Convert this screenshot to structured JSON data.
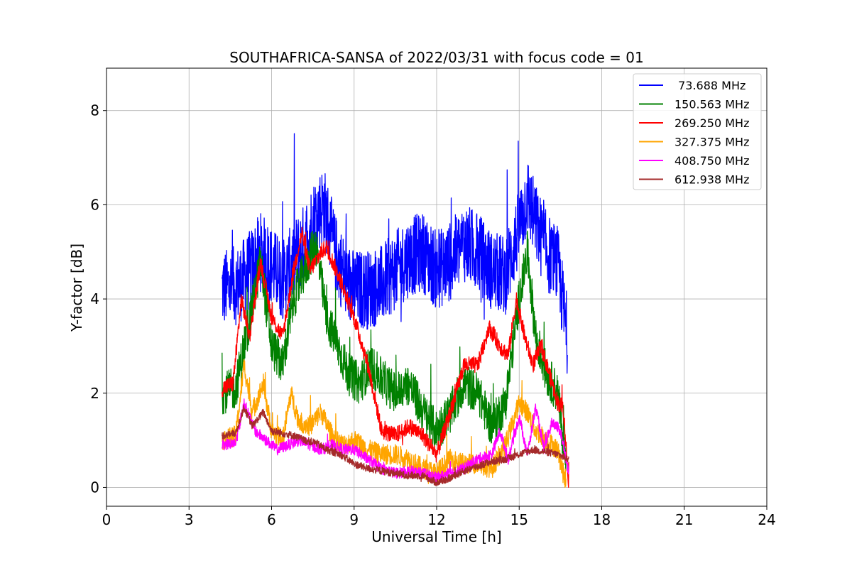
{
  "chart_data": {
    "type": "line",
    "title": "SOUTHAFRICA-SANSA of 2022/03/31 with focus code = 01",
    "xlabel": "Universal Time [h]",
    "ylabel": "Y-factor [dB]",
    "xlim": [
      0,
      24
    ],
    "ylim": [
      -0.4,
      8.9
    ],
    "xticks": [
      0,
      3,
      6,
      9,
      12,
      15,
      18,
      21,
      24
    ],
    "yticks": [
      0,
      2,
      4,
      6,
      8
    ],
    "grid": true,
    "legend_position": "top-right",
    "series": [
      {
        "name": " 73.688 MHz",
        "color": "#0000ff",
        "noise": 0.85,
        "x": [
          4.2,
          4.8,
          5.2,
          5.6,
          6.0,
          6.4,
          6.8,
          7.2,
          7.6,
          7.9,
          8.3,
          8.7,
          9.0,
          9.5,
          10.0,
          10.5,
          11.0,
          11.5,
          12.0,
          12.5,
          13.0,
          13.5,
          14.0,
          14.5,
          15.0,
          15.3,
          15.6,
          16.0,
          16.4,
          16.75
        ],
        "values": [
          4.2,
          4.3,
          4.6,
          5.0,
          4.7,
          4.4,
          4.8,
          5.2,
          5.8,
          6.0,
          5.0,
          4.4,
          4.2,
          4.2,
          4.3,
          4.6,
          4.9,
          5.0,
          4.6,
          4.8,
          5.2,
          5.0,
          4.6,
          4.5,
          5.5,
          6.2,
          5.6,
          5.0,
          4.7,
          3.2
        ]
      },
      {
        "name": "150.563 MHz",
        "color": "#008000",
        "noise": 0.45,
        "x": [
          4.2,
          4.7,
          5.0,
          5.3,
          5.6,
          6.0,
          6.4,
          6.8,
          7.2,
          7.6,
          8.0,
          8.4,
          8.8,
          9.2,
          9.6,
          10.0,
          10.5,
          11.0,
          11.5,
          12.0,
          12.5,
          13.0,
          13.5,
          14.0,
          14.5,
          15.0,
          15.3,
          15.6,
          16.0,
          16.4,
          16.7
        ],
        "values": [
          2.0,
          2.1,
          3.0,
          3.8,
          4.8,
          3.0,
          2.6,
          4.0,
          4.6,
          5.2,
          3.6,
          3.0,
          2.4,
          2.2,
          2.6,
          2.3,
          2.0,
          2.2,
          1.6,
          1.2,
          1.6,
          2.2,
          2.0,
          1.3,
          1.8,
          4.0,
          5.0,
          3.2,
          2.4,
          2.0,
          0.5
        ]
      },
      {
        "name": "269.250 MHz",
        "color": "#ff0000",
        "noise": 0.18,
        "x": [
          4.2,
          4.6,
          4.9,
          5.2,
          5.6,
          6.0,
          6.4,
          6.8,
          7.1,
          7.4,
          7.8,
          8.0,
          8.5,
          9.0,
          9.5,
          10.0,
          10.5,
          11.0,
          11.5,
          12.0,
          12.5,
          13.0,
          13.5,
          13.9,
          14.3,
          14.6,
          14.9,
          15.2,
          15.5,
          15.8,
          16.1,
          16.4,
          16.6,
          16.8
        ],
        "values": [
          2.1,
          2.2,
          4.0,
          3.2,
          4.8,
          3.6,
          3.2,
          4.6,
          5.4,
          4.6,
          5.0,
          5.1,
          4.4,
          3.6,
          2.6,
          1.2,
          1.1,
          1.3,
          1.1,
          0.7,
          1.6,
          2.6,
          2.6,
          3.4,
          3.0,
          2.8,
          4.0,
          3.2,
          2.6,
          3.0,
          2.4,
          1.8,
          1.7,
          0.1
        ]
      },
      {
        "name": "327.375 MHz",
        "color": "#ffa500",
        "noise": 0.22,
        "x": [
          4.2,
          4.7,
          5.0,
          5.3,
          5.7,
          6.0,
          6.4,
          6.7,
          7.0,
          7.4,
          7.8,
          8.2,
          8.6,
          9.0,
          9.5,
          10.0,
          10.5,
          11.0,
          11.5,
          12.0,
          12.5,
          13.0,
          13.5,
          14.0,
          14.5,
          15.0,
          15.3,
          15.6,
          16.0,
          16.4,
          16.7
        ],
        "values": [
          1.0,
          1.1,
          2.6,
          1.6,
          2.2,
          1.2,
          1.0,
          2.0,
          1.4,
          1.3,
          1.6,
          1.1,
          0.9,
          1.0,
          0.8,
          0.7,
          0.7,
          0.6,
          0.4,
          0.3,
          0.6,
          0.5,
          0.5,
          0.4,
          0.9,
          1.8,
          1.6,
          1.2,
          1.0,
          0.8,
          0.05
        ]
      },
      {
        "name": "408.750 MHz",
        "color": "#ff00ff",
        "noise": 0.12,
        "x": [
          4.2,
          4.7,
          5.0,
          5.4,
          5.8,
          6.2,
          6.6,
          7.0,
          7.4,
          7.8,
          8.2,
          8.6,
          9.0,
          9.5,
          10.0,
          10.5,
          11.0,
          11.5,
          12.0,
          12.5,
          13.0,
          13.5,
          14.0,
          14.3,
          14.6,
          15.0,
          15.3,
          15.6,
          15.9,
          16.2,
          16.5,
          16.8
        ],
        "values": [
          0.9,
          0.95,
          1.8,
          1.2,
          1.0,
          0.8,
          0.9,
          1.0,
          0.9,
          0.8,
          0.9,
          0.8,
          0.8,
          0.6,
          0.4,
          0.3,
          0.35,
          0.3,
          0.2,
          0.3,
          0.4,
          0.6,
          0.7,
          1.2,
          0.6,
          1.5,
          0.7,
          1.7,
          0.8,
          1.4,
          1.2,
          0.3
        ]
      },
      {
        "name": "612.938 MHz",
        "color": "#a52a2a",
        "noise": 0.08,
        "x": [
          4.2,
          4.7,
          5.0,
          5.3,
          5.7,
          6.0,
          6.4,
          6.8,
          7.2,
          7.6,
          8.0,
          8.5,
          9.0,
          9.5,
          10.0,
          10.5,
          11.0,
          11.5,
          12.0,
          12.5,
          13.0,
          13.5,
          14.0,
          14.5,
          15.0,
          15.5,
          16.0,
          16.4,
          16.8
        ],
        "values": [
          1.1,
          1.15,
          1.7,
          1.3,
          1.6,
          1.2,
          1.15,
          1.1,
          1.0,
          0.95,
          0.8,
          0.7,
          0.5,
          0.4,
          0.35,
          0.3,
          0.25,
          0.25,
          0.1,
          0.2,
          0.35,
          0.45,
          0.55,
          0.6,
          0.7,
          0.8,
          0.75,
          0.7,
          0.6
        ]
      }
    ]
  }
}
